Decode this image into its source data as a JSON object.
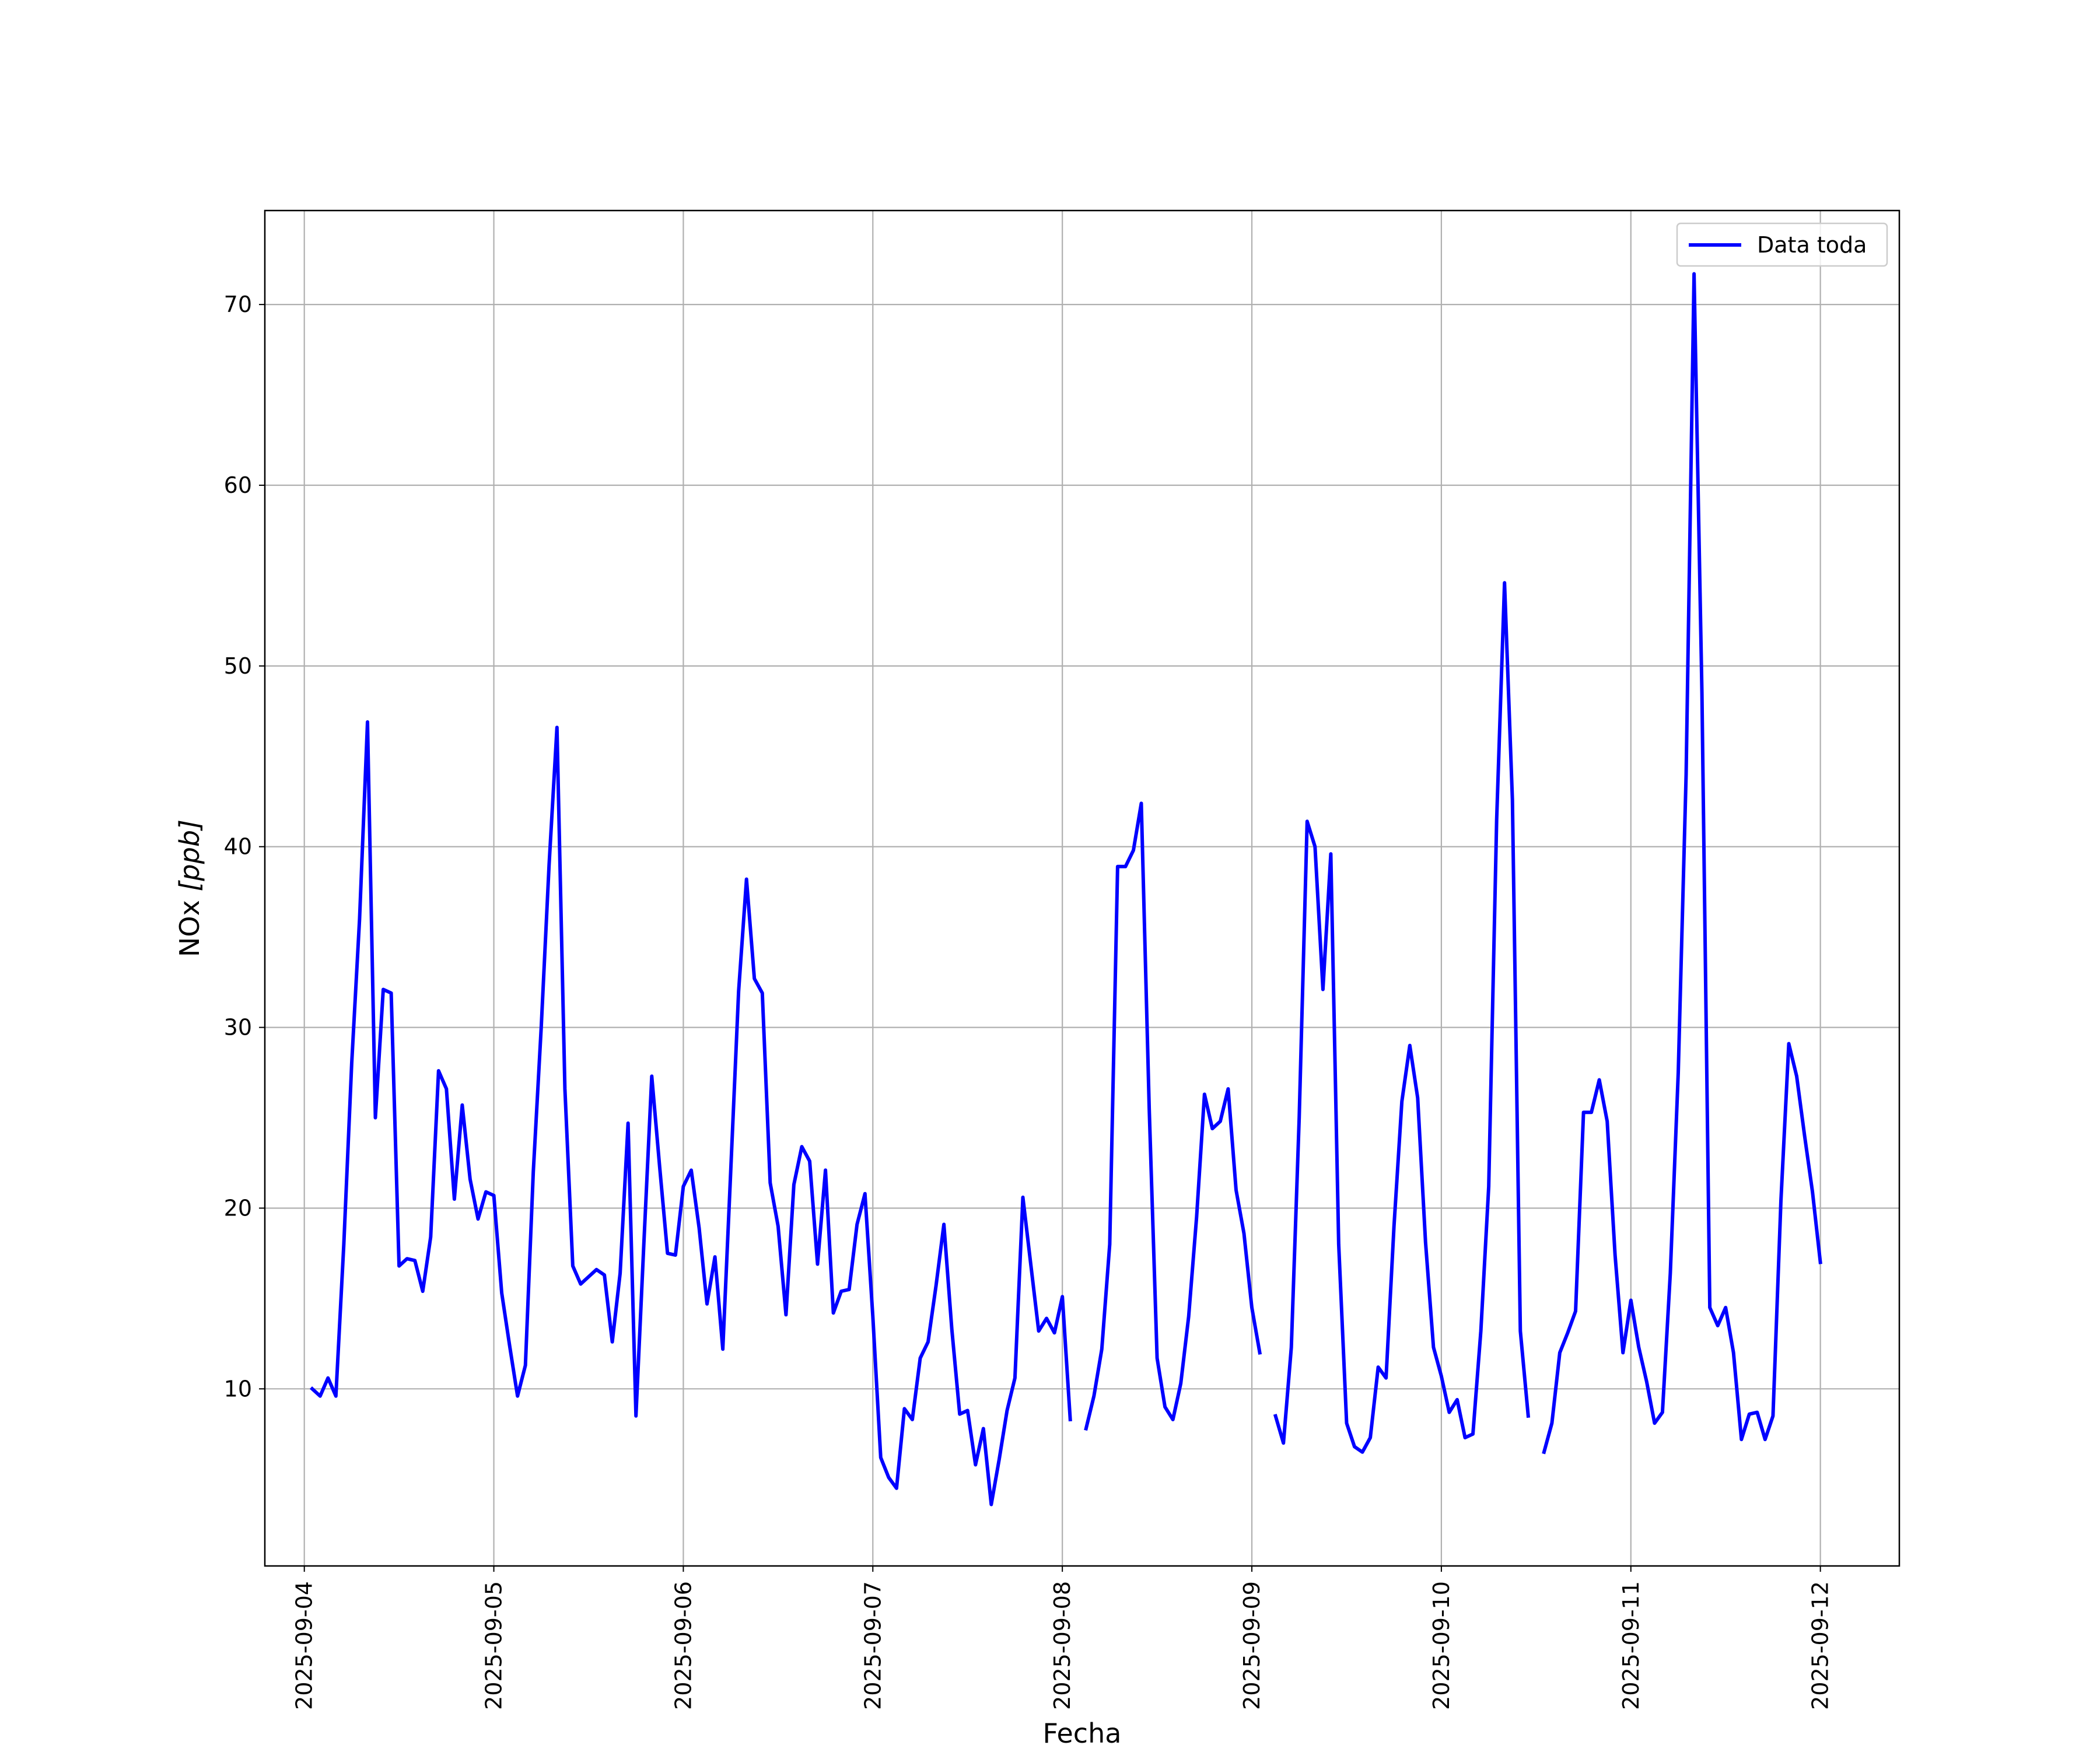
{
  "chart_data": {
    "type": "line",
    "xlabel": "Fecha",
    "ylabel_main": "NOx ",
    "ylabel_unit": "[ppb]",
    "x_ticks": [
      "2025-09-04",
      "2025-09-05",
      "2025-09-06",
      "2025-09-07",
      "2025-09-08",
      "2025-09-09",
      "2025-09-10",
      "2025-09-11",
      "2025-09-12"
    ],
    "y_ticks": [
      "10",
      "20",
      "30",
      "40",
      "50",
      "60",
      "70"
    ],
    "xlim": [
      "2025-09-03 19:00",
      "2025-09-12 10:00"
    ],
    "ylim": [
      0.2,
      75.2
    ],
    "grid": true,
    "legend_position": "top-right",
    "line_color": "#0000ff",
    "series": [
      {
        "name": "Data toda",
        "color": "#0000ff",
        "segments": [
          [
            [
              "2025-09-04 01:00",
              10.0
            ],
            [
              "2025-09-04 02:00",
              9.6
            ],
            [
              "2025-09-04 03:00",
              10.6
            ],
            [
              "2025-09-04 04:00",
              9.6
            ],
            [
              "2025-09-04 05:00",
              18.0
            ],
            [
              "2025-09-04 06:00",
              28.0
            ],
            [
              "2025-09-04 07:00",
              36.0
            ],
            [
              "2025-09-04 08:00",
              46.9
            ],
            [
              "2025-09-04 09:00",
              25.0
            ],
            [
              "2025-09-04 10:00",
              32.1
            ],
            [
              "2025-09-04 11:00",
              31.9
            ],
            [
              "2025-09-04 12:00",
              16.8
            ],
            [
              "2025-09-04 13:00",
              17.2
            ],
            [
              "2025-09-04 14:00",
              17.1
            ],
            [
              "2025-09-04 15:00",
              15.4
            ],
            [
              "2025-09-04 16:00",
              18.4
            ],
            [
              "2025-09-04 17:00",
              27.6
            ],
            [
              "2025-09-04 18:00",
              26.6
            ],
            [
              "2025-09-04 19:00",
              20.5
            ],
            [
              "2025-09-04 20:00",
              25.7
            ],
            [
              "2025-09-04 21:00",
              21.6
            ],
            [
              "2025-09-04 22:00",
              19.4
            ],
            [
              "2025-09-04 23:00",
              20.9
            ],
            [
              "2025-09-05 00:00",
              20.7
            ],
            [
              "2025-09-05 01:00",
              15.3
            ],
            [
              "2025-09-05 02:00",
              12.4
            ],
            [
              "2025-09-05 03:00",
              9.6
            ],
            [
              "2025-09-05 04:00",
              11.3
            ],
            [
              "2025-09-05 05:00",
              22.0
            ],
            [
              "2025-09-05 06:00",
              30.0
            ],
            [
              "2025-09-05 07:00",
              39.0
            ],
            [
              "2025-09-05 08:00",
              46.6
            ],
            [
              "2025-09-05 09:00",
              26.6
            ],
            [
              "2025-09-05 10:00",
              16.8
            ],
            [
              "2025-09-05 11:00",
              15.8
            ],
            [
              "2025-09-05 12:00",
              16.2
            ],
            [
              "2025-09-05 13:00",
              16.6
            ],
            [
              "2025-09-05 14:00",
              16.3
            ],
            [
              "2025-09-05 15:00",
              12.6
            ],
            [
              "2025-09-05 16:00",
              16.4
            ],
            [
              "2025-09-05 17:00",
              24.7
            ],
            [
              "2025-09-05 18:00",
              8.5
            ],
            [
              "2025-09-05 19:00",
              18.0
            ],
            [
              "2025-09-05 20:00",
              27.3
            ],
            [
              "2025-09-05 21:00",
              22.3
            ],
            [
              "2025-09-05 22:00",
              17.5
            ],
            [
              "2025-09-05 23:00",
              17.4
            ],
            [
              "2025-09-06 00:00",
              21.2
            ],
            [
              "2025-09-06 01:00",
              22.1
            ],
            [
              "2025-09-06 02:00",
              18.9
            ],
            [
              "2025-09-06 03:00",
              14.7
            ],
            [
              "2025-09-06 04:00",
              17.3
            ],
            [
              "2025-09-06 05:00",
              12.2
            ],
            [
              "2025-09-06 06:00",
              22.0
            ],
            [
              "2025-09-06 07:00",
              32.0
            ],
            [
              "2025-09-06 08:00",
              38.2
            ],
            [
              "2025-09-06 09:00",
              32.7
            ],
            [
              "2025-09-06 10:00",
              31.9
            ],
            [
              "2025-09-06 11:00",
              21.4
            ],
            [
              "2025-09-06 12:00",
              19.0
            ],
            [
              "2025-09-06 13:00",
              14.1
            ],
            [
              "2025-09-06 14:00",
              21.3
            ],
            [
              "2025-09-06 15:00",
              23.4
            ],
            [
              "2025-09-06 16:00",
              22.6
            ],
            [
              "2025-09-06 17:00",
              16.9
            ],
            [
              "2025-09-06 18:00",
              22.1
            ],
            [
              "2025-09-06 19:00",
              14.2
            ],
            [
              "2025-09-06 20:00",
              15.4
            ],
            [
              "2025-09-06 21:00",
              15.5
            ],
            [
              "2025-09-06 22:00",
              19.1
            ],
            [
              "2025-09-06 23:00",
              20.8
            ],
            [
              "2025-09-07 00:00",
              14.0
            ],
            [
              "2025-09-07 01:00",
              6.2
            ],
            [
              "2025-09-07 02:00",
              5.1
            ],
            [
              "2025-09-07 03:00",
              4.5
            ],
            [
              "2025-09-07 04:00",
              8.9
            ],
            [
              "2025-09-07 05:00",
              8.3
            ],
            [
              "2025-09-07 06:00",
              11.7
            ],
            [
              "2025-09-07 07:00",
              12.6
            ],
            [
              "2025-09-07 08:00",
              15.7
            ],
            [
              "2025-09-07 09:00",
              19.1
            ],
            [
              "2025-09-07 10:00",
              13.3
            ],
            [
              "2025-09-07 11:00",
              8.6
            ],
            [
              "2025-09-07 12:00",
              8.8
            ],
            [
              "2025-09-07 13:00",
              5.8
            ],
            [
              "2025-09-07 14:00",
              7.8
            ],
            [
              "2025-09-07 15:00",
              3.6
            ],
            [
              "2025-09-07 16:00",
              6.1
            ],
            [
              "2025-09-07 17:00",
              8.8
            ],
            [
              "2025-09-07 18:00",
              10.6
            ],
            [
              "2025-09-07 19:00",
              20.6
            ],
            [
              "2025-09-07 20:00",
              16.9
            ],
            [
              "2025-09-07 21:00",
              13.2
            ],
            [
              "2025-09-07 22:00",
              13.9
            ],
            [
              "2025-09-07 23:00",
              13.1
            ],
            [
              "2025-09-08 00:00",
              15.1
            ],
            [
              "2025-09-08 01:00",
              8.3
            ]
          ],
          [
            [
              "2025-09-08 03:00",
              7.8
            ],
            [
              "2025-09-08 04:00",
              9.6
            ],
            [
              "2025-09-08 05:00",
              12.2
            ],
            [
              "2025-09-08 06:00",
              18.0
            ],
            [
              "2025-09-08 07:00",
              38.9
            ],
            [
              "2025-09-08 08:00",
              38.9
            ],
            [
              "2025-09-08 09:00",
              39.8
            ],
            [
              "2025-09-08 10:00",
              42.4
            ],
            [
              "2025-09-08 11:00",
              25.5
            ],
            [
              "2025-09-08 12:00",
              11.7
            ],
            [
              "2025-09-08 13:00",
              9.0
            ],
            [
              "2025-09-08 14:00",
              8.3
            ],
            [
              "2025-09-08 15:00",
              10.3
            ],
            [
              "2025-09-08 16:00",
              14.0
            ],
            [
              "2025-09-08 17:00",
              19.5
            ],
            [
              "2025-09-08 18:00",
              26.3
            ],
            [
              "2025-09-08 19:00",
              24.4
            ],
            [
              "2025-09-08 20:00",
              24.8
            ],
            [
              "2025-09-08 21:00",
              26.6
            ],
            [
              "2025-09-08 22:00",
              21.0
            ],
            [
              "2025-09-08 23:00",
              18.6
            ],
            [
              "2025-09-09 00:00",
              14.5
            ],
            [
              "2025-09-09 01:00",
              12.0
            ]
          ],
          [
            [
              "2025-09-09 03:00",
              8.5
            ],
            [
              "2025-09-09 04:00",
              7.0
            ],
            [
              "2025-09-09 05:00",
              12.3
            ],
            [
              "2025-09-09 06:00",
              25.0
            ],
            [
              "2025-09-09 07:00",
              41.4
            ],
            [
              "2025-09-09 08:00",
              40.0
            ],
            [
              "2025-09-09 09:00",
              32.1
            ],
            [
              "2025-09-09 10:00",
              39.6
            ],
            [
              "2025-09-09 11:00",
              18.0
            ],
            [
              "2025-09-09 12:00",
              8.1
            ],
            [
              "2025-09-09 13:00",
              6.8
            ],
            [
              "2025-09-09 14:00",
              6.5
            ],
            [
              "2025-09-09 15:00",
              7.3
            ],
            [
              "2025-09-09 16:00",
              11.2
            ],
            [
              "2025-09-09 17:00",
              10.6
            ],
            [
              "2025-09-09 18:00",
              19.0
            ],
            [
              "2025-09-09 19:00",
              25.9
            ],
            [
              "2025-09-09 20:00",
              29.0
            ],
            [
              "2025-09-09 21:00",
              26.1
            ],
            [
              "2025-09-09 22:00",
              18.1
            ],
            [
              "2025-09-09 23:00",
              12.3
            ],
            [
              "2025-09-10 00:00",
              10.7
            ],
            [
              "2025-09-10 01:00",
              8.7
            ],
            [
              "2025-09-10 02:00",
              9.4
            ],
            [
              "2025-09-10 03:00",
              7.3
            ],
            [
              "2025-09-10 04:00",
              7.5
            ],
            [
              "2025-09-10 05:00",
              13.2
            ],
            [
              "2025-09-10 06:00",
              21.2
            ],
            [
              "2025-09-10 07:00",
              41.5
            ],
            [
              "2025-09-10 08:00",
              54.6
            ],
            [
              "2025-09-10 09:00",
              42.6
            ],
            [
              "2025-09-10 10:00",
              13.2
            ],
            [
              "2025-09-10 11:00",
              8.5
            ]
          ],
          [
            [
              "2025-09-10 13:00",
              6.5
            ],
            [
              "2025-09-10 14:00",
              8.1
            ],
            [
              "2025-09-10 15:00",
              12.0
            ],
            [
              "2025-09-10 16:00",
              13.1
            ],
            [
              "2025-09-10 17:00",
              14.3
            ],
            [
              "2025-09-10 18:00",
              25.3
            ],
            [
              "2025-09-10 19:00",
              25.3
            ],
            [
              "2025-09-10 20:00",
              27.1
            ],
            [
              "2025-09-10 21:00",
              24.8
            ],
            [
              "2025-09-10 22:00",
              17.4
            ],
            [
              "2025-09-10 23:00",
              12.0
            ],
            [
              "2025-09-11 00:00",
              14.9
            ],
            [
              "2025-09-11 01:00",
              12.3
            ],
            [
              "2025-09-11 02:00",
              10.4
            ],
            [
              "2025-09-11 03:00",
              8.1
            ],
            [
              "2025-09-11 04:00",
              8.7
            ],
            [
              "2025-09-11 05:00",
              16.4
            ],
            [
              "2025-09-11 06:00",
              27.5
            ],
            [
              "2025-09-11 07:00",
              44.0
            ],
            [
              "2025-09-11 08:00",
              71.7
            ],
            [
              "2025-09-11 09:00",
              48.5
            ],
            [
              "2025-09-11 10:00",
              14.5
            ],
            [
              "2025-09-11 11:00",
              13.5
            ],
            [
              "2025-09-11 12:00",
              14.5
            ],
            [
              "2025-09-11 13:00",
              12.0
            ],
            [
              "2025-09-11 14:00",
              7.2
            ],
            [
              "2025-09-11 15:00",
              8.6
            ],
            [
              "2025-09-11 16:00",
              8.7
            ],
            [
              "2025-09-11 17:00",
              7.2
            ],
            [
              "2025-09-11 18:00",
              8.5
            ],
            [
              "2025-09-11 19:00",
              20.4
            ],
            [
              "2025-09-11 20:00",
              29.1
            ],
            [
              "2025-09-11 21:00",
              27.3
            ],
            [
              "2025-09-11 22:00",
              24.0
            ],
            [
              "2025-09-11 23:00",
              20.9
            ],
            [
              "2025-09-12 00:00",
              17.0
            ]
          ]
        ]
      }
    ]
  }
}
